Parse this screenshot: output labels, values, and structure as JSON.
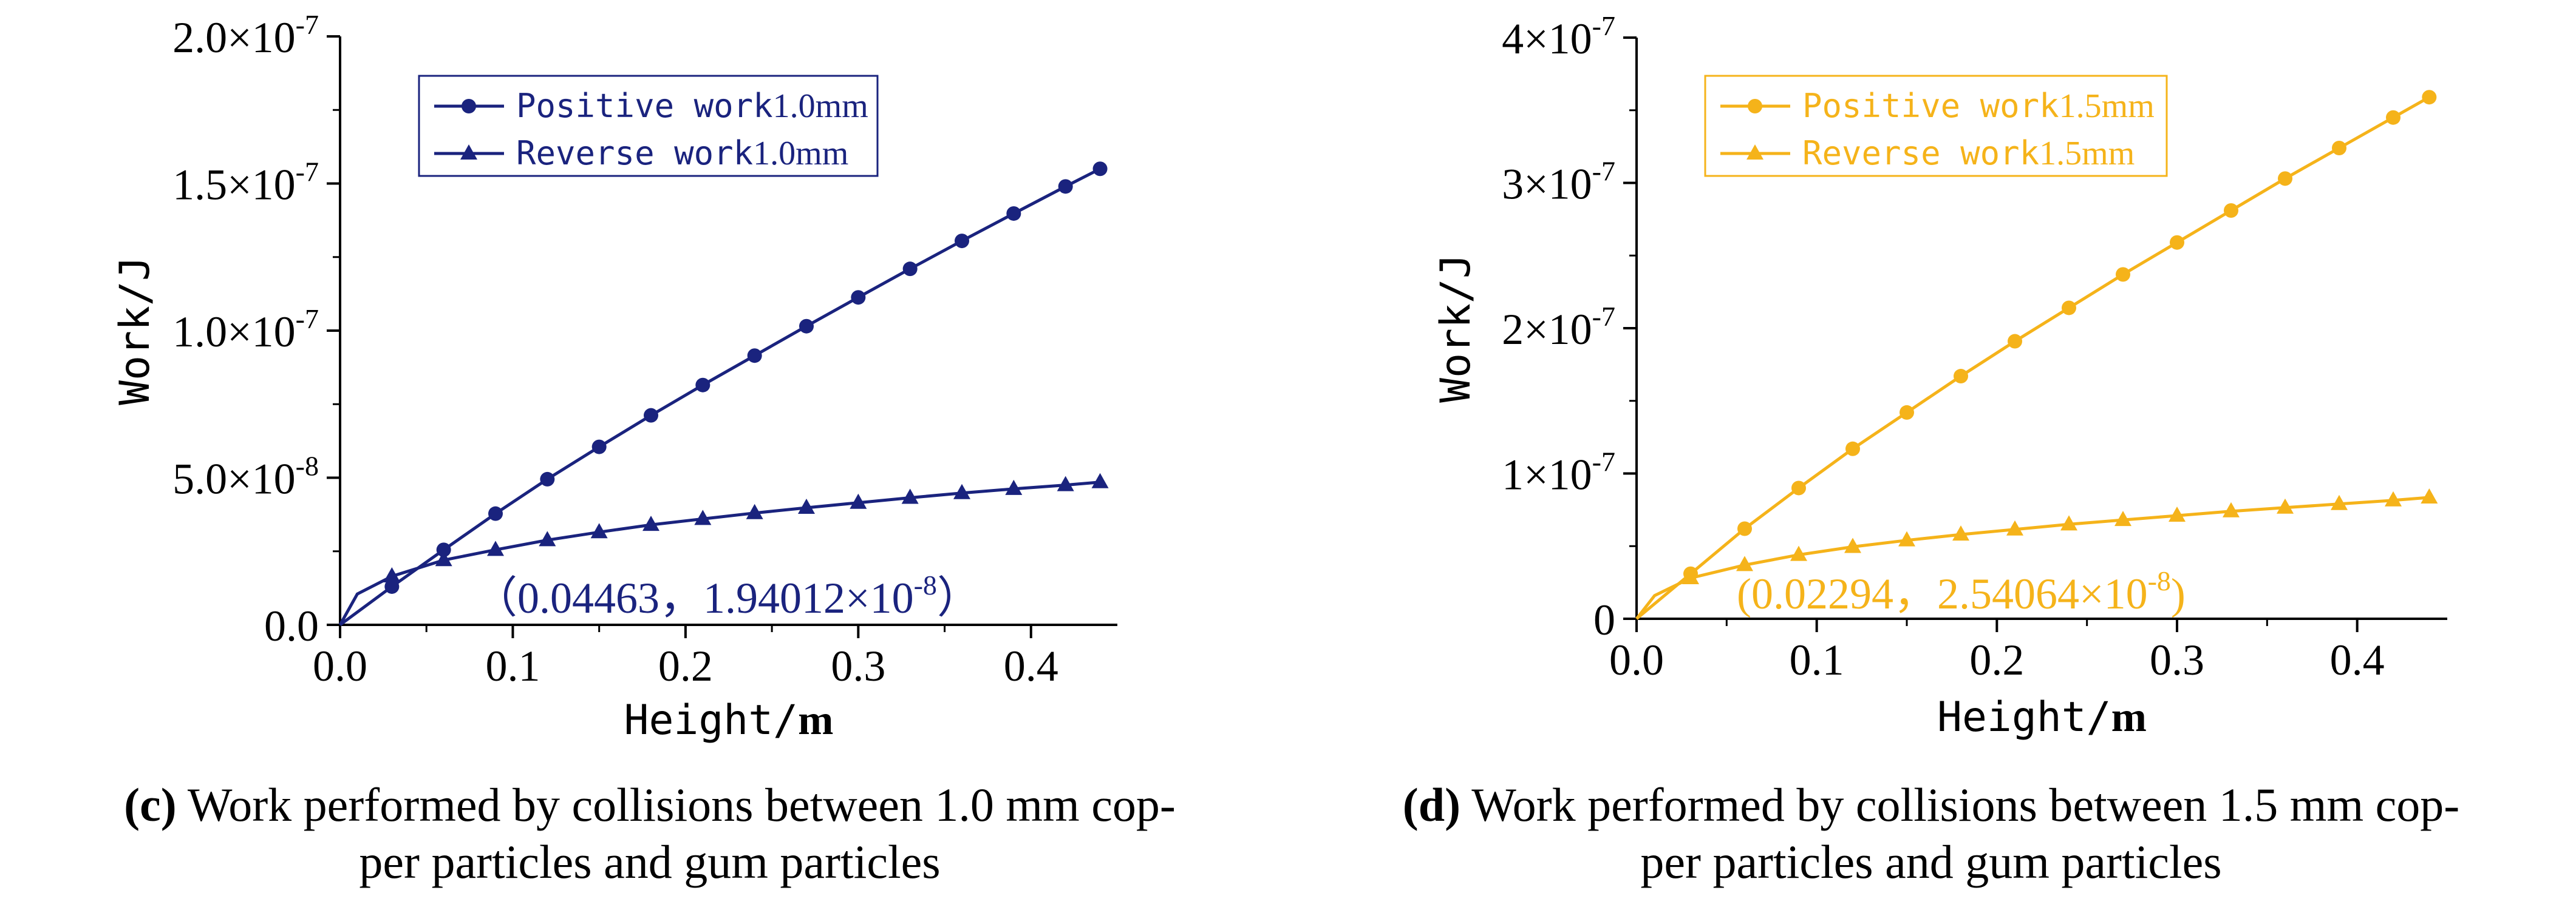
{
  "chart_data": [
    {
      "type": "line",
      "panel": "c",
      "color": "#1a237e",
      "xlabel": "Height/m",
      "xlabel_main": "Height/",
      "xlabel_unit": "m",
      "ylabel": "Work/J",
      "xlim": [
        0,
        0.45
      ],
      "ylim": [
        0,
        2e-07
      ],
      "xticks": [
        0.0,
        0.1,
        0.2,
        0.3,
        0.4
      ],
      "xtick_labels": [
        "0.0",
        "0.1",
        "0.2",
        "0.3",
        "0.4"
      ],
      "yticks": [
        0,
        5e-08,
        1e-07,
        1.5e-07,
        2e-07
      ],
      "ytick_labels": [
        {
          "base": "0.0",
          "exp": ""
        },
        {
          "base": "5.0×10",
          "exp": "-8"
        },
        {
          "base": "1.0×10",
          "exp": "-7"
        },
        {
          "base": "1.5×10",
          "exp": "-7"
        },
        {
          "base": "2.0×10",
          "exp": "-7"
        }
      ],
      "legend_position": "top-center",
      "series": [
        {
          "name": "Positive work1.0mm",
          "name_main": "Positive work",
          "name_unit": "1.0mm",
          "marker": "circle",
          "x": [
            0.0,
            0.03,
            0.06,
            0.09,
            0.12,
            0.15,
            0.18,
            0.21,
            0.24,
            0.27,
            0.3,
            0.33,
            0.36,
            0.39,
            0.42,
            0.44
          ],
          "values": [
            0,
            1.3e-08,
            2.55e-08,
            3.78e-08,
            4.95e-08,
            6.05e-08,
            7.12e-08,
            8.15e-08,
            9.15e-08,
            1.015e-07,
            1.113e-07,
            1.21e-07,
            1.305e-07,
            1.398e-07,
            1.49e-07,
            1.55e-07
          ],
          "markers": [
            false,
            true,
            true,
            true,
            true,
            true,
            true,
            true,
            true,
            true,
            true,
            true,
            true,
            true,
            true,
            true
          ]
        },
        {
          "name": "Reverse work1.0mm",
          "name_main": "Reverse work",
          "name_unit": "1.0mm",
          "marker": "triangle",
          "x": [
            0.0,
            0.01,
            0.03,
            0.06,
            0.09,
            0.12,
            0.15,
            0.18,
            0.21,
            0.24,
            0.27,
            0.3,
            0.33,
            0.36,
            0.39,
            0.42,
            0.44
          ],
          "values": [
            0,
            1.05e-08,
            1.65e-08,
            2.2e-08,
            2.55e-08,
            2.88e-08,
            3.15e-08,
            3.4e-08,
            3.6e-08,
            3.8e-08,
            3.98e-08,
            4.15e-08,
            4.32e-08,
            4.48e-08,
            4.62e-08,
            4.75e-08,
            4.85e-08
          ],
          "markers": [
            false,
            false,
            true,
            true,
            true,
            true,
            true,
            true,
            true,
            true,
            true,
            true,
            true,
            true,
            true,
            true,
            true
          ]
        }
      ],
      "annotation": {
        "text": "（0.04463，1.94012×10",
        "sup": "-8",
        "close": "）"
      },
      "caption": {
        "label": "(c)",
        "text": "Work performed by collisions between 1.0 mm cop-",
        "text2": "per particles and gum particles"
      }
    },
    {
      "type": "line",
      "panel": "d",
      "color": "#f5b31a",
      "xlabel": "Height/m",
      "xlabel_main": "Height/",
      "xlabel_unit": "m",
      "ylabel": "Work/J",
      "xlim": [
        0,
        0.45
      ],
      "ylim": [
        0,
        4e-07
      ],
      "xticks": [
        0.0,
        0.1,
        0.2,
        0.3,
        0.4
      ],
      "xtick_labels": [
        "0.0",
        "0.1",
        "0.2",
        "0.3",
        "0.4"
      ],
      "yticks": [
        0,
        1e-07,
        2e-07,
        3e-07,
        4e-07
      ],
      "ytick_labels": [
        {
          "base": "0",
          "exp": ""
        },
        {
          "base": "1×10",
          "exp": "-7"
        },
        {
          "base": "2×10",
          "exp": "-7"
        },
        {
          "base": "3×10",
          "exp": "-7"
        },
        {
          "base": "4×10",
          "exp": "-7"
        }
      ],
      "legend_position": "top-center",
      "series": [
        {
          "name": "Positive work1.5mm",
          "name_main": "Positive work",
          "name_unit": "1.5mm",
          "marker": "circle",
          "x": [
            0.0,
            0.03,
            0.06,
            0.09,
            0.12,
            0.15,
            0.18,
            0.21,
            0.24,
            0.27,
            0.3,
            0.33,
            0.36,
            0.39,
            0.42,
            0.44
          ],
          "values": [
            0,
            3.1e-08,
            6.2e-08,
            9e-08,
            1.17e-07,
            1.42e-07,
            1.67e-07,
            1.91e-07,
            2.14e-07,
            2.37e-07,
            2.59e-07,
            2.81e-07,
            3.03e-07,
            3.24e-07,
            3.45e-07,
            3.59e-07
          ],
          "markers": [
            false,
            true,
            true,
            true,
            true,
            true,
            true,
            true,
            true,
            true,
            true,
            true,
            true,
            true,
            true,
            true
          ]
        },
        {
          "name": "Reverse work1.5mm",
          "name_main": "Reverse work",
          "name_unit": "1.5mm",
          "marker": "triangle",
          "x": [
            0.0,
            0.01,
            0.03,
            0.06,
            0.09,
            0.12,
            0.15,
            0.18,
            0.21,
            0.24,
            0.27,
            0.3,
            0.33,
            0.36,
            0.39,
            0.42,
            0.44
          ],
          "values": [
            0,
            1.6e-08,
            2.8e-08,
            3.7e-08,
            4.4e-08,
            4.95e-08,
            5.4e-08,
            5.8e-08,
            6.15e-08,
            6.5e-08,
            6.8e-08,
            7.1e-08,
            7.4e-08,
            7.65e-08,
            7.9e-08,
            8.15e-08,
            8.35e-08
          ],
          "markers": [
            false,
            false,
            true,
            true,
            true,
            true,
            true,
            true,
            true,
            true,
            true,
            true,
            true,
            true,
            true,
            true,
            true
          ]
        }
      ],
      "annotation": {
        "text": "(0.02294，2.54064×10",
        "sup": "-8",
        "close": ")"
      },
      "caption": {
        "label": "(d)",
        "text": "Work performed by collisions between 1.5 mm cop-",
        "text2": "per particles and gum particles"
      }
    }
  ]
}
